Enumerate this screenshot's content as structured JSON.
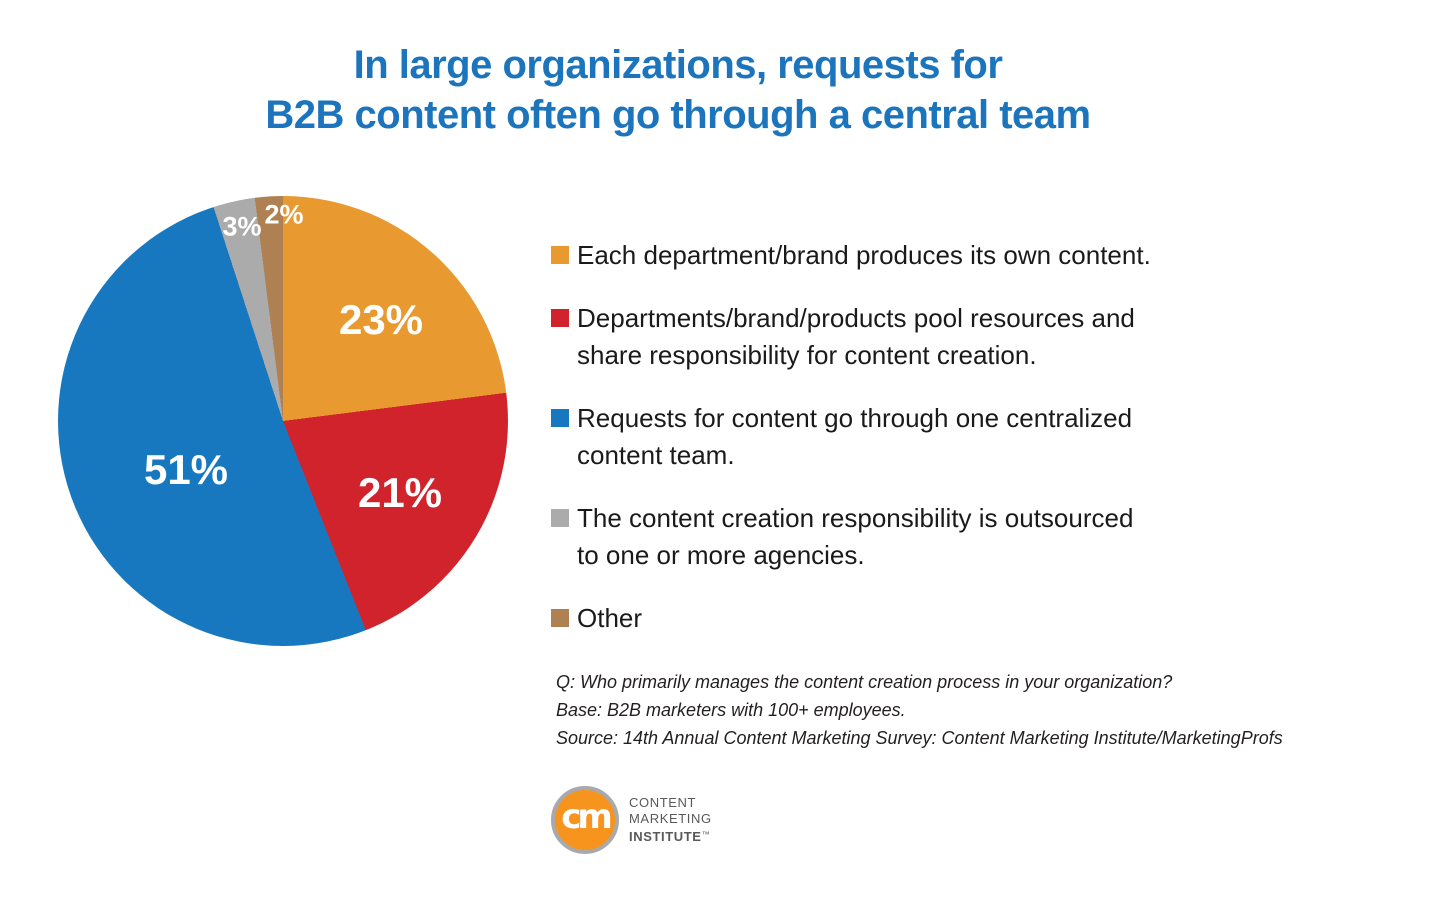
{
  "title": {
    "line1": "In large organizations, requests for",
    "line2": "B2B content often go through a central team",
    "color": "#1C75BC"
  },
  "chart_data": {
    "type": "pie",
    "title": "In large organizations, requests for B2B content often go through a central team",
    "direction": "clockwise",
    "start_angle_deg": 0,
    "legend_position": "right",
    "slices": [
      {
        "label": "Each department/brand produces its own content.",
        "value": 23,
        "data_label": "23%",
        "color": "#E8992F"
      },
      {
        "label": "Departments/brand/products pool resources and\nshare responsibility for content creation.",
        "value": 21,
        "data_label": "21%",
        "color": "#D0232B"
      },
      {
        "label": "Requests for content go through one centralized\ncontent team.",
        "value": 51,
        "data_label": "51%",
        "color": "#1878BF"
      },
      {
        "label": "The content creation responsibility is outsourced\nto one or more agencies.",
        "value": 3,
        "data_label": "3%",
        "color": "#ABABAB"
      },
      {
        "label": "Other",
        "value": 2,
        "data_label": "2%",
        "color": "#AF8052"
      }
    ]
  },
  "footnote": {
    "question": "Q: Who primarily manages the content creation process in your organization?",
    "base": "Base: B2B marketers with 100+ employees.",
    "source": "Source: 14th Annual Content Marketing Survey: Content Marketing Institute/MarketingProfs"
  },
  "logo": {
    "monogram": "cm",
    "line1": "CONTENT",
    "line2": "MARKETING",
    "line3": "INSTITUTE",
    "trademark": "™",
    "circle_color": "#F7941E",
    "ring_color": "#A7A9AC",
    "text_color": "#58595B"
  }
}
